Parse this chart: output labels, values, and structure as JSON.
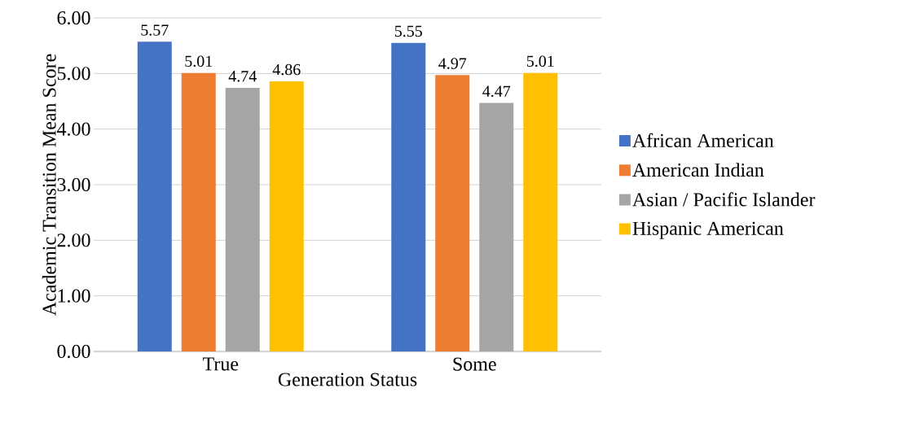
{
  "chart_data": {
    "type": "bar",
    "xlabel": "Generation Status",
    "ylabel": "Academic Transition Mean Score",
    "categories": [
      "True",
      "Some"
    ],
    "series": [
      {
        "name": "African American",
        "color": "#4472c4",
        "values": [
          5.57,
          5.55
        ]
      },
      {
        "name": "American Indian",
        "color": "#ed7d31",
        "values": [
          5.01,
          4.97
        ]
      },
      {
        "name": "Asian / Pacific Islander",
        "color": "#a5a5a5",
        "values": [
          4.74,
          4.47
        ]
      },
      {
        "name": "Hispanic American",
        "color": "#ffc000",
        "values": [
          4.86,
          5.01
        ]
      }
    ],
    "ylim": [
      0,
      6
    ],
    "yticks": [
      {
        "value": 0,
        "label": "0.00"
      },
      {
        "value": 1,
        "label": "1.00"
      },
      {
        "value": 2,
        "label": "2.00"
      },
      {
        "value": 3,
        "label": "3.00"
      },
      {
        "value": 4,
        "label": "4.00"
      },
      {
        "value": 5,
        "label": "5.00"
      },
      {
        "value": 6,
        "label": "6.00"
      }
    ],
    "grid": "y",
    "legend": "right",
    "data_labels": true
  }
}
